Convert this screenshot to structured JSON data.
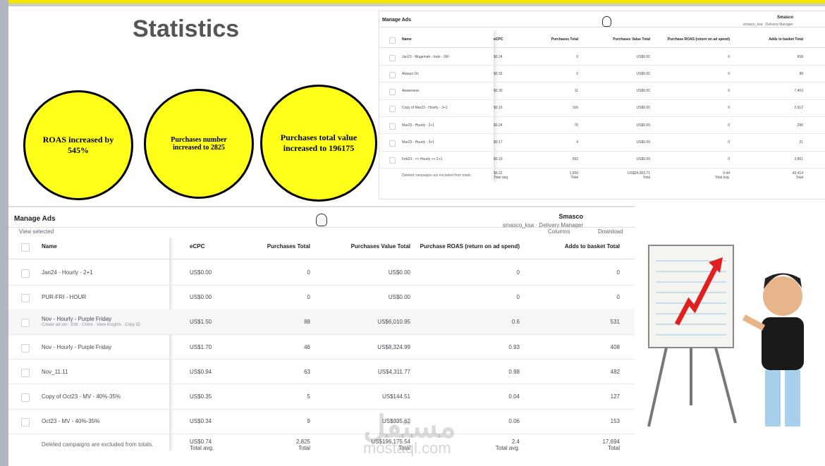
{
  "header": {
    "title": "Statistics"
  },
  "circles": [
    {
      "text": "ROAS increased by 545%"
    },
    {
      "text": "Purchases number increased to 2825"
    },
    {
      "text": "Purchases total value increased to 196175"
    }
  ],
  "top_screenshot": {
    "app_title": "Manage Ads",
    "account_name": "Smasco",
    "account_role": "smasco_ksa · Delivery Manager",
    "columns": [
      "Name",
      "eCPC",
      "Purchases Total",
      "Purchases Value Total",
      "Purchase ROAS (return on ad spend)",
      "Adds to basket Total"
    ],
    "rows": [
      [
        "Jan23 - Mugemah - Indo - 3M -",
        "$0.24",
        "0",
        "US$0.00",
        "0",
        "658"
      ],
      [
        "Always On",
        "$0.33",
        "0",
        "US$0.00",
        "0",
        "88"
      ],
      [
        "Awareness",
        "$0.30",
        "11",
        "US$0.00",
        "0",
        "7,403"
      ],
      [
        "Copy of Mar23 - Hourly - 3+1",
        "$0.15",
        "166",
        "US$0.00",
        "0",
        "2,912"
      ],
      [
        "Mar23 - Hourly - 2+1",
        "$0.24",
        "76",
        "US$0.00",
        "0",
        "296"
      ],
      [
        "Mar23 - Hourly - 3+1",
        "$0.17",
        "4",
        "US$0.00",
        "0",
        "21"
      ],
      [
        "Feb23 - << Hourly >> 2+1",
        "$0.10",
        "592",
        "US$0.00",
        "0",
        "3,861"
      ]
    ],
    "totals": [
      "Deleted campaigns are excluded from totals.",
      [
        "$0.22",
        "Total avg."
      ],
      [
        "1,650",
        "Total"
      ],
      [
        "US$24,002.71",
        "Total"
      ],
      [
        "0.44",
        "Total avg."
      ],
      [
        "43,414",
        "Total"
      ]
    ]
  },
  "main_screenshot": {
    "app_title": "Manage Ads",
    "account_name": "Smasco",
    "account_role": "smasco_ksa · Delivery Manager",
    "toolbar": [
      "View selected",
      "Columns",
      "Download"
    ],
    "columns": [
      "Name",
      "eCPC",
      "Purchases Total",
      "Purchases Value Total",
      "Purchase ROAS (return on ad spend)",
      "Adds to basket Total"
    ],
    "rows": [
      [
        "Jan24 - Hourly - 2+1",
        "US$0.00",
        "0",
        "US$0.00",
        "0",
        "0"
      ],
      [
        "PUR-FRI - HOUR",
        "US$0.00",
        "0",
        "US$0.00",
        "0",
        "0"
      ],
      [
        "Nov - Hourly - Purple Friday",
        "US$1.50",
        "88",
        "US$6,010.95",
        "0.6",
        "531"
      ],
      [
        "Nov - Hourly - Purple Friday",
        "US$1.70",
        "46",
        "US$8,324.99",
        "0.93",
        "408"
      ],
      [
        "Nov_11.11",
        "US$0.94",
        "63",
        "US$4,311.77",
        "0.98",
        "482"
      ],
      [
        "Copy of Oct23 - MV - 40%-35%",
        "US$0.35",
        "5",
        "US$144.51",
        "0.04",
        "127"
      ],
      [
        "Oct23 - MV - 40%-35%",
        "US$0.34",
        "9",
        "US$335.62",
        "0.06",
        "153"
      ]
    ],
    "row_actions": "Create ad set · Edit · Clone · View insights · Copy ID",
    "totals": [
      "Deleted campaigns are excluded from totals.",
      [
        "US$0.74",
        "Total avg."
      ],
      [
        "2,825",
        "Total"
      ],
      [
        "US$196,175.54",
        "Total"
      ],
      [
        "2.4",
        "Total avg."
      ],
      [
        "17,694",
        "Total"
      ]
    ]
  },
  "watermark": [
    "مستقل",
    "mostaql.com"
  ]
}
